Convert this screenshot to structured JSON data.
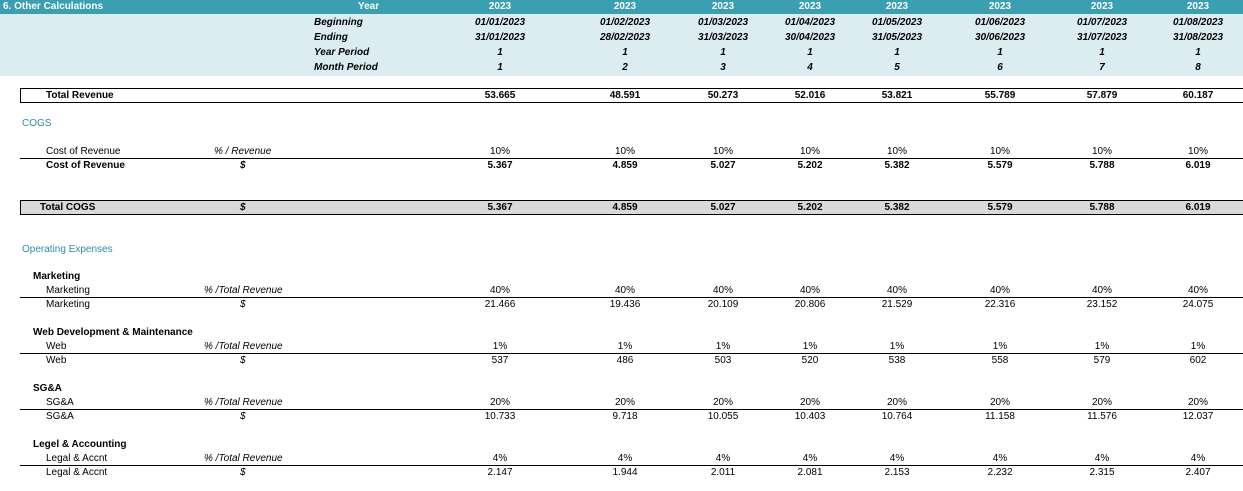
{
  "header": {
    "section_title": "6.  Other Calculations",
    "year_label": "Year",
    "row_labels": [
      "Beginning",
      "Ending",
      "Year Period",
      "Month Period"
    ],
    "years": [
      "2023",
      "2023",
      "2023",
      "2023",
      "2023",
      "2023",
      "2023",
      "2023"
    ],
    "beginning": [
      "01/01/2023",
      "01/02/2023",
      "01/03/2023",
      "01/04/2023",
      "01/05/2023",
      "01/06/2023",
      "01/07/2023",
      "01/08/2023"
    ],
    "ending": [
      "31/01/2023",
      "28/02/2023",
      "31/03/2023",
      "30/04/2023",
      "31/05/2023",
      "30/06/2023",
      "31/07/2023",
      "31/08/2023"
    ],
    "year_period": [
      "1",
      "1",
      "1",
      "1",
      "1",
      "1",
      "1",
      "1"
    ],
    "month_period": [
      "1",
      "2",
      "3",
      "4",
      "5",
      "6",
      "7",
      "8"
    ]
  },
  "total_revenue": {
    "label": "Total Revenue",
    "values": [
      "53.665",
      "48.591",
      "50.273",
      "52.016",
      "53.821",
      "55.789",
      "57.879",
      "60.187"
    ]
  },
  "cogs": {
    "section": "COGS",
    "pct_label": "Cost of Revenue",
    "pct_unit": "% / Revenue",
    "pct_values": [
      "10%",
      "10%",
      "10%",
      "10%",
      "10%",
      "10%",
      "10%",
      "10%"
    ],
    "amt_label": "Cost of Revenue",
    "amt_unit": "$",
    "amt_values": [
      "5.367",
      "4.859",
      "5.027",
      "5.202",
      "5.382",
      "5.579",
      "5.788",
      "6.019"
    ]
  },
  "total_cogs": {
    "label": "Total COGS",
    "unit": "$",
    "values": [
      "5.367",
      "4.859",
      "5.027",
      "5.202",
      "5.382",
      "5.579",
      "5.788",
      "6.019"
    ]
  },
  "opex": {
    "section": "Operating Expenses",
    "groups": [
      {
        "title": "Marketing",
        "pct_label": "Marketing",
        "pct_unit": "% /Total Revenue",
        "pct_values": [
          "40%",
          "40%",
          "40%",
          "40%",
          "40%",
          "40%",
          "40%",
          "40%"
        ],
        "amt_label": "Marketing",
        "amt_unit": "$",
        "amt_values": [
          "21.466",
          "19.436",
          "20.109",
          "20.806",
          "21.529",
          "22.316",
          "23.152",
          "24.075"
        ]
      },
      {
        "title": "Web Development & Maintenance",
        "pct_label": "Web",
        "pct_unit": "% /Total Revenue",
        "pct_values": [
          "1%",
          "1%",
          "1%",
          "1%",
          "1%",
          "1%",
          "1%",
          "1%"
        ],
        "amt_label": "Web",
        "amt_unit": "$",
        "amt_values": [
          "537",
          "486",
          "503",
          "520",
          "538",
          "558",
          "579",
          "602"
        ]
      },
      {
        "title": "SG&A",
        "pct_label": "SG&A",
        "pct_unit": "% /Total Revenue",
        "pct_values": [
          "20%",
          "20%",
          "20%",
          "20%",
          "20%",
          "20%",
          "20%",
          "20%"
        ],
        "amt_label": "SG&A",
        "amt_unit": "$",
        "amt_values": [
          "10.733",
          "9.718",
          "10.055",
          "10.403",
          "10.764",
          "11.158",
          "11.576",
          "12.037"
        ]
      },
      {
        "title": "Legel & Accounting",
        "pct_label": "Legal & Accnt",
        "pct_unit": "% /Total Revenue",
        "pct_values": [
          "4%",
          "4%",
          "4%",
          "4%",
          "4%",
          "4%",
          "4%",
          "4%"
        ],
        "amt_label": "Legal & Accnt",
        "amt_unit": "$",
        "amt_values": [
          "2.147",
          "1.944",
          "2.011",
          "2.081",
          "2.153",
          "2.232",
          "2.315",
          "2.407"
        ]
      }
    ]
  },
  "colors": {
    "header_bar": "#3a9fb0",
    "header_band": "#dcedf2",
    "section_label": "#2e8ea8",
    "total_box": "#d9d9d9"
  }
}
